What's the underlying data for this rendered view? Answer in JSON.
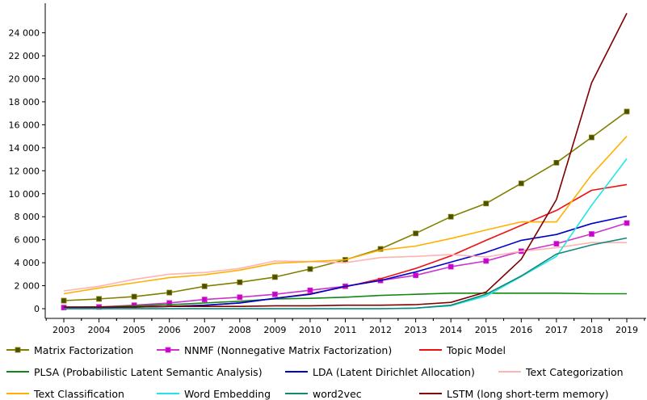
{
  "chart_data": {
    "type": "line",
    "title": "",
    "xlabel": "",
    "ylabel": "",
    "x": [
      2003,
      2004,
      2005,
      2006,
      2007,
      2008,
      2009,
      2010,
      2011,
      2012,
      2013,
      2014,
      2015,
      2016,
      2017,
      2018,
      2019
    ],
    "x_tick_labels": [
      "2003",
      "2004",
      "2005",
      "2006",
      "2007",
      "2008",
      "2009",
      "2010",
      "2011",
      "2012",
      "2013",
      "2014",
      "2015",
      "2016",
      "2017",
      "2018",
      "2019"
    ],
    "ylim": [
      0,
      25500
    ],
    "y_ticks": [
      0,
      2000,
      4000,
      6000,
      8000,
      10000,
      12000,
      14000,
      16000,
      18000,
      20000,
      22000,
      24000
    ],
    "y_tick_labels": [
      "0",
      "2 000",
      "4 000",
      "6 000",
      "8 000",
      "10 000",
      "12 000",
      "14 000",
      "16 000",
      "18 000",
      "20 000",
      "22 000",
      "24 000"
    ],
    "grid": false,
    "legend_position": "bottom",
    "series": [
      {
        "name": "Matrix Factorization",
        "color": "#808000",
        "marker": "square",
        "marker_fill": "#4d4d00",
        "values": [
          700,
          850,
          1050,
          1400,
          1950,
          2300,
          2750,
          3450,
          4250,
          5200,
          6550,
          8000,
          9150,
          10900,
          12700,
          14900,
          17150
        ]
      },
      {
        "name": "NNMF (Nonnegative Matrix Factorization)",
        "color": "#cc33cc",
        "marker": "square",
        "marker_fill": "#cc00cc",
        "values": [
          100,
          150,
          300,
          500,
          800,
          1000,
          1250,
          1600,
          1950,
          2450,
          2900,
          3650,
          4150,
          5000,
          5650,
          6500,
          7450
        ]
      },
      {
        "name": "Topic Model",
        "color": "#ee1111",
        "marker": "none",
        "values": [
          100,
          100,
          150,
          200,
          300,
          500,
          900,
          1300,
          1900,
          2600,
          3500,
          4600,
          5950,
          7250,
          8550,
          10300,
          10800
        ]
      },
      {
        "name": "PLSA (Probabilistic Latent Semantic Analysis)",
        "color": "#118811",
        "marker": "none",
        "values": [
          100,
          150,
          250,
          350,
          500,
          650,
          850,
          900,
          1000,
          1150,
          1250,
          1350,
          1350,
          1350,
          1350,
          1300,
          1300
        ]
      },
      {
        "name": "LDA (Latent Dirichlet Allocation)",
        "color": "#0000cc",
        "marker": "none",
        "values": [
          100,
          100,
          150,
          200,
          300,
          500,
          900,
          1250,
          1950,
          2450,
          3200,
          4050,
          4900,
          5950,
          6450,
          7400,
          8050
        ]
      },
      {
        "name": "Text Categorization",
        "color": "#ffb3b3",
        "marker": "none",
        "values": [
          1550,
          1950,
          2550,
          3000,
          3150,
          3500,
          4150,
          4100,
          4000,
          4450,
          4550,
          4700,
          4500,
          5000,
          5300,
          5750,
          5750
        ]
      },
      {
        "name": "Text Classification",
        "color": "#ffb000",
        "marker": "none",
        "values": [
          1300,
          1800,
          2250,
          2700,
          2950,
          3350,
          3950,
          4100,
          4250,
          5100,
          5450,
          6100,
          6850,
          7550,
          7550,
          11650,
          15000
        ]
      },
      {
        "name": "Word Embedding",
        "color": "#22e6e6",
        "marker": "none",
        "values": [
          0,
          0,
          0,
          0,
          0,
          0,
          0,
          0,
          0,
          0,
          50,
          250,
          1100,
          2800,
          4550,
          9000,
          13050
        ]
      },
      {
        "name": "word2vec",
        "color": "#118877",
        "marker": "none",
        "values": [
          0,
          0,
          0,
          0,
          0,
          0,
          0,
          0,
          0,
          0,
          50,
          300,
          1250,
          2850,
          4750,
          5550,
          6150
        ]
      },
      {
        "name": "LSTM (long short-term memory)",
        "color": "#800000",
        "marker": "none",
        "values": [
          150,
          150,
          150,
          200,
          200,
          200,
          250,
          250,
          300,
          300,
          350,
          550,
          1450,
          4300,
          9500,
          19650,
          25700
        ]
      }
    ]
  }
}
